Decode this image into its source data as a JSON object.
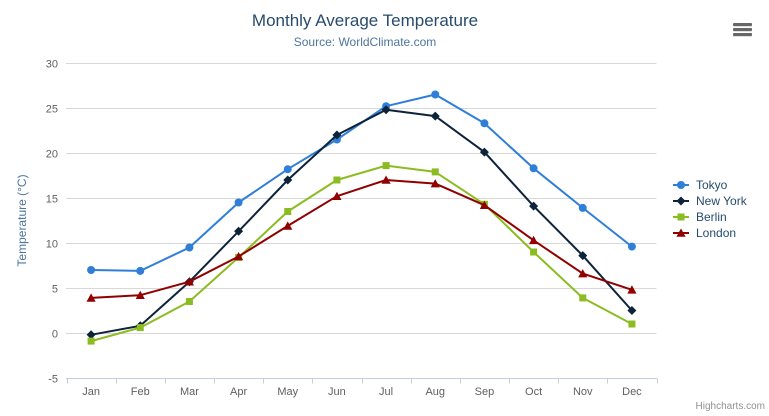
{
  "chart": {
    "credits": "Highcharts.com",
    "menu_tooltip": "Chart context menu"
  },
  "chart_data": {
    "type": "line",
    "title": "Monthly Average Temperature",
    "subtitle": "Source: WorldClimate.com",
    "categories": [
      "Jan",
      "Feb",
      "Mar",
      "Apr",
      "May",
      "Jun",
      "Jul",
      "Aug",
      "Sep",
      "Oct",
      "Nov",
      "Dec"
    ],
    "series": [
      {
        "name": "Tokyo",
        "color": "#2f7ed8",
        "marker": "circle",
        "values": [
          7.0,
          6.9,
          9.5,
          14.5,
          18.2,
          21.5,
          25.2,
          26.5,
          23.3,
          18.3,
          13.9,
          9.6
        ]
      },
      {
        "name": "New York",
        "color": "#0d233a",
        "marker": "diamond",
        "values": [
          -0.2,
          0.8,
          5.7,
          11.3,
          17.0,
          22.0,
          24.8,
          24.1,
          20.1,
          14.1,
          8.6,
          2.5
        ]
      },
      {
        "name": "Berlin",
        "color": "#8bbc21",
        "marker": "square",
        "values": [
          -0.9,
          0.6,
          3.5,
          8.4,
          13.5,
          17.0,
          18.6,
          17.9,
          14.3,
          9.0,
          3.9,
          1.0
        ]
      },
      {
        "name": "London",
        "color": "#910000",
        "marker": "triangle",
        "values": [
          3.9,
          4.2,
          5.7,
          8.5,
          11.9,
          15.2,
          17.0,
          16.6,
          14.2,
          10.3,
          6.6,
          4.8
        ]
      }
    ],
    "xlabel": "",
    "ylabel": "Temperature (°C)",
    "ylim": [
      -5,
      30
    ],
    "ytick_interval": 5,
    "ytick_labels": [
      "-5",
      "0",
      "5",
      "10",
      "15",
      "20",
      "25",
      "30"
    ],
    "grid": true,
    "legend_position": "right"
  },
  "colors": {
    "title_text": "#274b6d",
    "subtitle_text": "#4d759e",
    "axis_label_text": "#606060",
    "axis_title_text": "#4d759e",
    "grid_line": "#d8d8d8",
    "axis_line": "#c0d0e0",
    "legend_text": "#274b6d",
    "credits_text": "#909090",
    "menu_icon": "#666666"
  }
}
